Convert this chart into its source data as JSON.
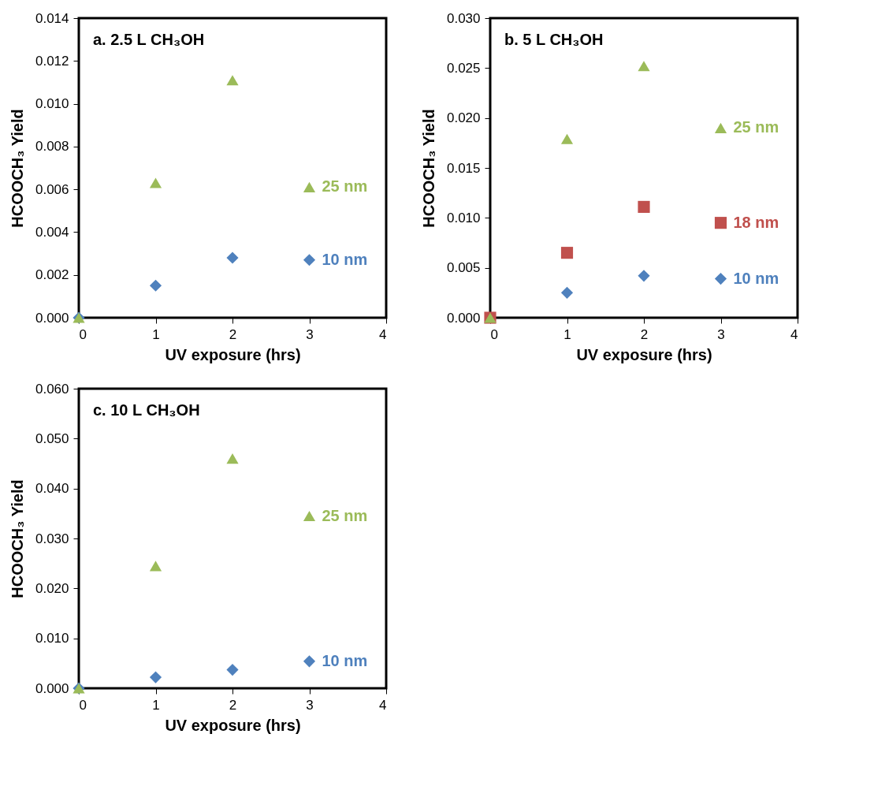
{
  "chart_data": [
    {
      "type": "scatter",
      "title": "a. 2.5 L CH₃OH",
      "xlabel": "UV exposure (hrs)",
      "ylabel": "HCOOCH₃ Yield",
      "x": [
        0,
        1,
        2,
        3
      ],
      "xlim": [
        0,
        4
      ],
      "xticks": [
        0,
        1,
        2,
        3,
        4
      ],
      "ylim": [
        0,
        0.014
      ],
      "yticks": [
        {
          "value": 0,
          "label": "0.000"
        },
        0.002,
        0.004,
        0.006,
        0.008,
        {
          "value": 0.01,
          "label": "0.010"
        },
        0.012,
        0.014
      ],
      "grid": false,
      "legend": false,
      "series": [
        {
          "name": "10 nm",
          "color": "#4f81bd",
          "marker": "diamond",
          "values": [
            0,
            0.0015,
            0.0028,
            0.0027
          ]
        },
        {
          "name": "25 nm",
          "color": "#9bbb59",
          "marker": "triangle",
          "values": [
            0,
            0.0063,
            0.0111,
            0.0061
          ]
        }
      ]
    },
    {
      "type": "scatter",
      "title": "b. 5 L CH₃OH",
      "xlabel": "UV exposure (hrs)",
      "ylabel": "HCOOCH₃ Yield",
      "x": [
        0,
        1,
        2,
        3
      ],
      "xlim": [
        0,
        4
      ],
      "xticks": [
        0,
        1,
        2,
        3,
        4
      ],
      "ylim": [
        0,
        0.03
      ],
      "yticks": [
        {
          "value": 0,
          "label": "0.000"
        },
        0.005,
        {
          "value": 0.01,
          "label": "0.010"
        },
        0.015,
        {
          "value": 0.02,
          "label": "0.020"
        },
        0.025,
        {
          "value": 0.03,
          "label": "0.030"
        }
      ],
      "grid": false,
      "legend": false,
      "series": [
        {
          "name": "10 nm",
          "color": "#4f81bd",
          "marker": "diamond",
          "values": [
            null,
            0.0025,
            0.0042,
            0.0039
          ]
        },
        {
          "name": "18 nm",
          "color": "#c0504d",
          "marker": "square",
          "values": [
            0,
            0.0065,
            0.0111,
            0.0095
          ]
        },
        {
          "name": "25 nm",
          "color": "#9bbb59",
          "marker": "triangle",
          "values": [
            0,
            0.0179,
            0.0252,
            0.019
          ]
        }
      ]
    },
    {
      "type": "scatter",
      "title": "c. 10 L CH₃OH",
      "xlabel": "UV exposure (hrs)",
      "ylabel": "HCOOCH₃ Yield",
      "x": [
        0,
        1,
        2,
        3
      ],
      "xlim": [
        0,
        4
      ],
      "xticks": [
        0,
        1,
        2,
        3,
        4
      ],
      "ylim": [
        0,
        0.06
      ],
      "yticks": [
        {
          "value": 0,
          "label": "0.000"
        },
        {
          "value": 0.01,
          "label": "0.010"
        },
        {
          "value": 0.02,
          "label": "0.020"
        },
        {
          "value": 0.03,
          "label": "0.030"
        },
        {
          "value": 0.04,
          "label": "0.040"
        },
        {
          "value": 0.05,
          "label": "0.050"
        },
        {
          "value": 0.06,
          "label": "0.060"
        }
      ],
      "grid": false,
      "legend": false,
      "series": [
        {
          "name": "10 nm",
          "color": "#4f81bd",
          "marker": "diamond",
          "values": [
            0,
            0.0022,
            0.0037,
            0.0054
          ]
        },
        {
          "name": "25 nm",
          "color": "#9bbb59",
          "marker": "triangle",
          "values": [
            0,
            0.0245,
            0.046,
            0.0345
          ]
        }
      ]
    }
  ]
}
